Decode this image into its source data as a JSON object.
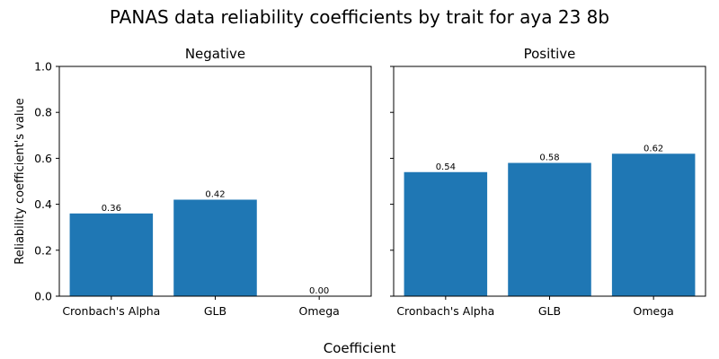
{
  "chart_data": {
    "type": "bar",
    "title": "PANAS data reliability coefficients by trait for aya 23 8b",
    "xlabel": "Coefficient",
    "ylabel": "Reliability coefficient's value",
    "ylim": [
      0,
      1.0
    ],
    "yticks": [
      "0.0",
      "0.2",
      "0.4",
      "0.6",
      "0.8",
      "1.0"
    ],
    "bar_color": "#1f77b4",
    "grid": false,
    "sharey": true,
    "panels": [
      {
        "title": "Negative",
        "categories": [
          "Cronbach's Alpha",
          "GLB",
          "Omega"
        ],
        "values": [
          0.36,
          0.42,
          0.0
        ],
        "value_labels": [
          "0.36",
          "0.42",
          "0.00"
        ]
      },
      {
        "title": "Positive",
        "categories": [
          "Cronbach's Alpha",
          "GLB",
          "Omega"
        ],
        "values": [
          0.54,
          0.58,
          0.62
        ],
        "value_labels": [
          "0.54",
          "0.58",
          "0.62"
        ]
      }
    ]
  }
}
